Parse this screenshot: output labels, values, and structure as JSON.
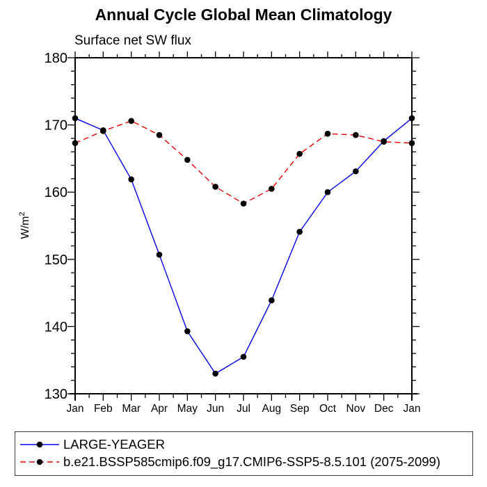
{
  "chart_data": {
    "type": "line",
    "title": "Annual Cycle Global Mean Climatology",
    "subtitle": "Surface net SW flux",
    "ylabel": "W/m²",
    "ylabel_base": "W/m",
    "ylabel_sup": "2",
    "categories": [
      "Jan",
      "Feb",
      "Mar",
      "Apr",
      "May",
      "Jun",
      "Jul",
      "Aug",
      "Sep",
      "Oct",
      "Nov",
      "Dec",
      "Jan"
    ],
    "series": [
      {
        "name": "LARGE-YEAGER",
        "color": "#0000ee",
        "line_style": "solid",
        "marker": "filled-circle",
        "marker_color": "#000000",
        "values": [
          171.0,
          169.2,
          161.9,
          150.7,
          139.3,
          133.0,
          135.5,
          143.9,
          154.1,
          160.0,
          163.1,
          167.6,
          171.0
        ]
      },
      {
        "name": "b.e21.BSSP585cmip6.f09_g17.CMIP6-SSP5-8.5.101 (2075-2099)",
        "color": "#ee0000",
        "line_style": "dashed",
        "marker": "filled-circle",
        "marker_color": "#000000",
        "values": [
          167.3,
          169.1,
          170.6,
          168.5,
          164.8,
          160.8,
          158.3,
          160.5,
          165.7,
          168.7,
          168.5,
          167.5,
          167.3
        ]
      }
    ],
    "ylim": [
      130,
      180
    ],
    "yticks": [
      130,
      140,
      150,
      160,
      170,
      180
    ],
    "y_minor_step": 2,
    "x_minor_ticks": "half-month",
    "grid": false,
    "legend_position": "bottom",
    "axis_color": "#000000",
    "text_color": "#000000"
  }
}
